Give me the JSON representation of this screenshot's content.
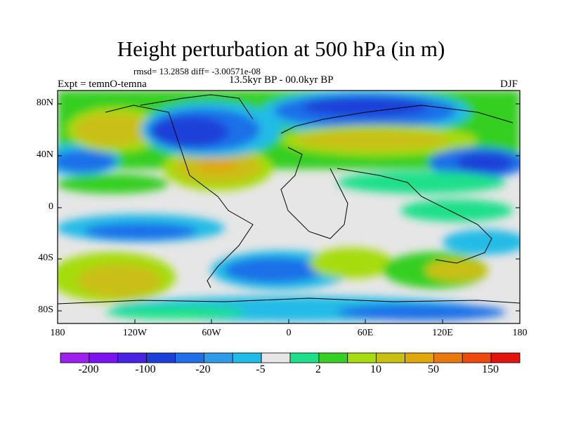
{
  "figure": {
    "title": "Height perturbation at 500 hPa (in m)",
    "stats": "rmsd= 13.2858 diff= -3.00571e-08",
    "experiment": "Expt = temnO-temna",
    "period": "13.5kyr BP - 00.0kyr BP",
    "season": "DJF"
  },
  "axes": {
    "y_ticks": [
      "80N",
      "40N",
      "0",
      "40S",
      "80S"
    ],
    "x_ticks": [
      "180",
      "120W",
      "60W",
      "0",
      "60E",
      "120E",
      "180"
    ]
  },
  "colorbar": {
    "colors": [
      "#9f1fef",
      "#7a13ef",
      "#4a22e4",
      "#1c3fd8",
      "#1f6fe8",
      "#2f9be8",
      "#20bbe6",
      "#e6e6e6",
      "#1ee08a",
      "#36cf23",
      "#a6dc11",
      "#c9bf12",
      "#dfa80c",
      "#e9790e",
      "#ee4a0c",
      "#e1150d"
    ],
    "labels": [
      "-200",
      "-100",
      "-20",
      "-5",
      "2",
      "10",
      "50",
      "150"
    ]
  }
}
